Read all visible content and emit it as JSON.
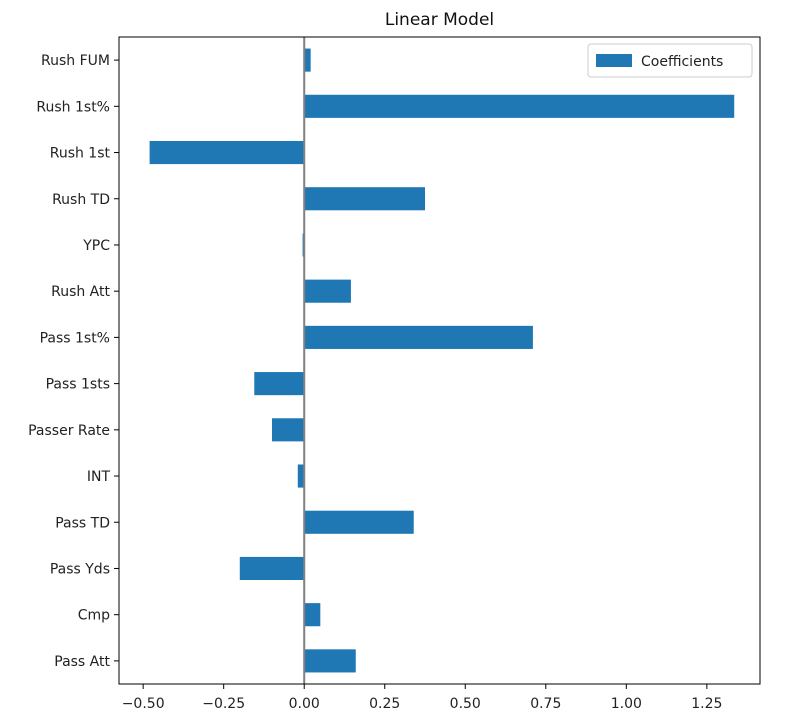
{
  "chart_data": {
    "type": "bar",
    "orientation": "horizontal",
    "title": "Linear Model",
    "xlabel": "",
    "ylabel": "",
    "categories": [
      "Pass Att",
      "Cmp",
      "Pass Yds",
      "Pass TD",
      "INT",
      "Passer Rate",
      "Pass 1sts",
      "Pass 1st%",
      "Rush Att",
      "YPC",
      "Rush TD",
      "Rush 1st",
      "Rush 1st%",
      "Rush FUM"
    ],
    "series": [
      {
        "name": "Coefficients",
        "color": "#1f77b4",
        "values": [
          0.16,
          0.05,
          -0.2,
          0.34,
          -0.02,
          -0.1,
          -0.155,
          0.71,
          0.145,
          -0.005,
          0.375,
          -0.48,
          1.335,
          0.02
        ]
      }
    ],
    "xlim": [
      -0.575,
      1.415
    ],
    "xticks": [
      -0.5,
      -0.25,
      0.0,
      0.25,
      0.5,
      0.75,
      1.0,
      1.25
    ],
    "xtick_labels": [
      "−0.50",
      "−0.25",
      "0.00",
      "0.25",
      "0.50",
      "0.75",
      "1.00",
      "1.25"
    ],
    "zero_line": {
      "value": 0,
      "color": "#808080"
    },
    "grid": false,
    "legend": {
      "position": "top-right"
    }
  }
}
